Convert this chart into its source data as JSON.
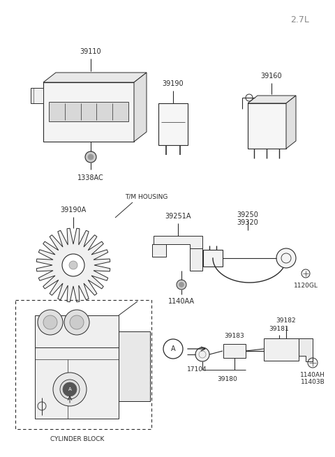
{
  "bg_color": "#ffffff",
  "line_color": "#2a2a2a",
  "text_color": "#2a2a2a",
  "title": "2.7L",
  "parts": {
    "ecu_label": "39110",
    "ecu_bolt_label": "1338AC",
    "relay1_label": "39190",
    "relay2_label": "39160",
    "ring_label": "39190A",
    "bracket_label": "39251A",
    "bracket_bolt_label": "1140AA",
    "wire_label1": "39250",
    "wire_label2": "39320",
    "wire_bolt_label": "1120GL",
    "tm_label": "T/M HOUSING",
    "cyl_label": "CYLINDER BLOCK",
    "circle_a_label": "A",
    "p17104": "17104",
    "p39183": "39183",
    "p39180": "39180",
    "p39181": "39181",
    "p39182": "39182",
    "p1140AH": "1140AH",
    "p11403B": "11403B"
  }
}
